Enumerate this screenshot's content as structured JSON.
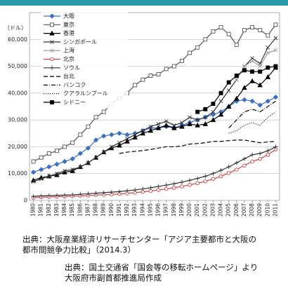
{
  "chart_data": {
    "type": "line",
    "y_label": "（ドル）",
    "categories": [
      "1980",
      "1981",
      "1982",
      "1983",
      "1984",
      "1985",
      "1986",
      "1987",
      "1988",
      "1989",
      "1990",
      "1991",
      "1992",
      "1993",
      "1994",
      "1995",
      "1996",
      "1997",
      "1998",
      "1999",
      "2000",
      "2001",
      "2002",
      "2003",
      "2004",
      "2005",
      "2006",
      "2007",
      "2008",
      "2009",
      "2010",
      "2011"
    ],
    "ylim": [
      0,
      70000
    ],
    "yticks": [
      0,
      {
        "value": 10000,
        "label": "10,000"
      },
      {
        "value": 20000,
        "label": "20,000"
      },
      {
        "value": 30000,
        "label": "30,000"
      },
      {
        "value": 40000,
        "label": "40,000"
      },
      {
        "value": 50000,
        "label": "50,000"
      },
      {
        "value": 60000,
        "label": "60,000"
      }
    ],
    "grid": true,
    "legend": "top-left",
    "series": [
      {
        "name": "大阪",
        "color": "#3a6fc4",
        "marker": "diamond",
        "values": [
          10500,
          11500,
          12500,
          13500,
          14500,
          15500,
          17500,
          19500,
          22500,
          24000,
          24500,
          25000,
          24500,
          25000,
          26000,
          27000,
          27000,
          27500,
          27000,
          28000,
          29000,
          30000,
          31000,
          32000,
          33000,
          35000,
          37000,
          37500,
          37000,
          35500,
          37000,
          38500
        ]
      },
      {
        "name": "東京",
        "color": "#555555",
        "marker": "open-square",
        "values": [
          14500,
          16000,
          17500,
          18500,
          20000,
          21500,
          24500,
          27500,
          31000,
          33000,
          36000,
          38000,
          40000,
          43000,
          45000,
          46500,
          47000,
          49000,
          50000,
          52000,
          55000,
          57000,
          60000,
          63000,
          64500,
          62000,
          58000,
          63500,
          64500,
          63500,
          61500,
          65500
        ]
      },
      {
        "name": "香港",
        "color": "#000000",
        "marker": "triangle",
        "values": [
          7500,
          8500,
          9000,
          9500,
          10500,
          11000,
          12500,
          14000,
          16000,
          18000,
          19500,
          20500,
          22000,
          23500,
          25000,
          26000,
          27000,
          28000,
          27000,
          27500,
          28500,
          28000,
          28500,
          30000,
          32000,
          35000,
          38000,
          42000,
          44500,
          43000,
          46000,
          49500
        ]
      },
      {
        "name": "シンガポール",
        "color": "#333333",
        "marker": "x",
        "values": [
          7000,
          8000,
          9000,
          10000,
          11000,
          11500,
          12500,
          14000,
          16000,
          18000,
          20000,
          21500,
          23000,
          24500,
          26000,
          27500,
          28500,
          29500,
          28000,
          29000,
          31000,
          30000,
          31000,
          33000,
          37000,
          41000,
          45000,
          50000,
          53000,
          51000,
          57000,
          60500
        ]
      },
      {
        "name": "上海",
        "color": "#999999",
        "marker": "x",
        "values": [
          null,
          null,
          null,
          null,
          null,
          null,
          null,
          null,
          null,
          null,
          null,
          null,
          null,
          null,
          null,
          null,
          null,
          null,
          null,
          null,
          null,
          null,
          null,
          null,
          null,
          null,
          45000,
          50000,
          52000,
          50000,
          55000,
          56000
        ]
      },
      {
        "name": "北京",
        "color": "#d04040",
        "marker": "open-circle",
        "values": [
          1000,
          1200,
          1300,
          1400,
          1500,
          1600,
          1700,
          1800,
          2000,
          2100,
          2200,
          2400,
          2600,
          2900,
          3200,
          3500,
          3900,
          4300,
          4700,
          5200,
          5800,
          6400,
          7100,
          8000,
          9000,
          10200,
          11500,
          13000,
          14500,
          15500,
          17000,
          19000
        ]
      },
      {
        "name": "ソウル",
        "color": "#333333",
        "marker": "plus",
        "values": [
          1500,
          1700,
          1800,
          1900,
          2000,
          2100,
          2300,
          2500,
          2700,
          2900,
          3100,
          3300,
          3600,
          3900,
          4300,
          4700,
          5200,
          5700,
          6200,
          6800,
          7500,
          8200,
          9000,
          10000,
          11200,
          12500,
          14000,
          15500,
          17000,
          17500,
          18500,
          20000
        ]
      },
      {
        "name": "台北",
        "color": "#000000",
        "marker": "none",
        "dash": "6 3",
        "values": [
          null,
          null,
          null,
          null,
          null,
          null,
          null,
          null,
          null,
          null,
          null,
          17500,
          18000,
          18300,
          18600,
          19000,
          19500,
          20000,
          20000,
          20300,
          21000,
          21200,
          21500,
          22000,
          22000,
          22300,
          22500,
          22500,
          22000,
          21500,
          21800,
          22000
        ]
      },
      {
        "name": "バンコク",
        "color": "#000000",
        "marker": "none",
        "dash": "6 2 1 2",
        "values": [
          null,
          null,
          null,
          null,
          null,
          null,
          null,
          null,
          null,
          null,
          null,
          null,
          null,
          null,
          null,
          null,
          null,
          null,
          null,
          null,
          null,
          null,
          null,
          null,
          null,
          27000,
          30000,
          33000,
          34000,
          33000,
          35000,
          37000
        ]
      },
      {
        "name": "クアラルンプール",
        "color": "#000000",
        "marker": "none",
        "dash": "1 2",
        "values": [
          null,
          null,
          null,
          null,
          null,
          null,
          null,
          null,
          null,
          null,
          null,
          null,
          null,
          null,
          null,
          null,
          null,
          null,
          null,
          null,
          null,
          null,
          null,
          null,
          null,
          25000,
          26000,
          28000,
          29000,
          28000,
          31000,
          33000
        ]
      },
      {
        "name": "シドニー",
        "color": "#000000",
        "marker": "square",
        "values": [
          null,
          null,
          null,
          null,
          null,
          null,
          null,
          null,
          null,
          null,
          null,
          null,
          null,
          null,
          null,
          null,
          null,
          null,
          null,
          null,
          null,
          33000,
          34000,
          36000,
          40000,
          44000,
          46500,
          48500,
          48000,
          48000,
          49500,
          50000
        ]
      }
    ]
  },
  "sources": [
    [
      "出典：大阪産業経済リサーチセンター「アジア主要都市と大阪の",
      "都市間競争力比較」（2014.3）"
    ],
    [
      "出典：国土交通省「国会等の移転ホームページ」より",
      "大阪府市副首都推進局作成"
    ]
  ]
}
